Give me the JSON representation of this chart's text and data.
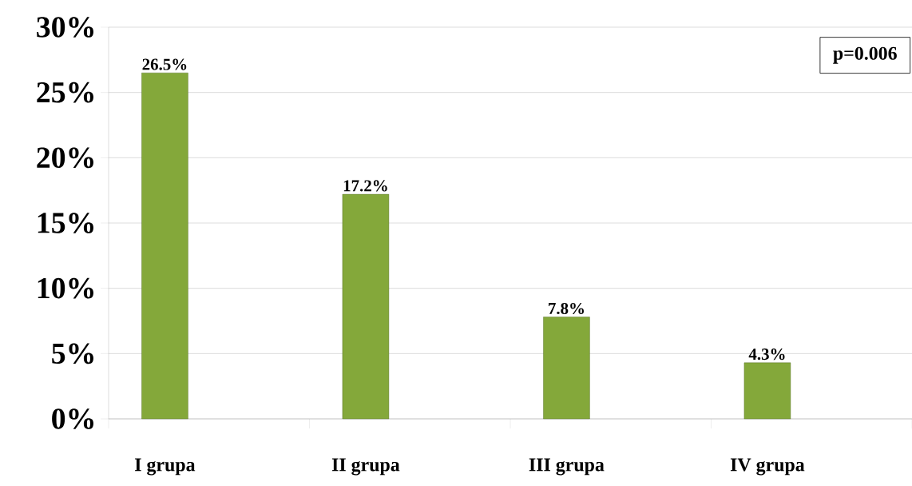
{
  "chart_data": {
    "type": "bar",
    "categories": [
      "I grupa",
      "II grupa",
      "III grupa",
      "IV grupa"
    ],
    "values": [
      26.5,
      17.2,
      7.8,
      4.3
    ],
    "value_labels": [
      "26.5%",
      "17.2%",
      "7.8%",
      "4.3%"
    ],
    "color": "#84a83a",
    "ylim": [
      0,
      30
    ],
    "yticks": [
      {
        "value": 0,
        "label": "0%"
      },
      {
        "value": 5,
        "label": "5%"
      },
      {
        "value": 10,
        "label": "10%"
      },
      {
        "value": 15,
        "label": "15%"
      },
      {
        "value": 20,
        "label": "20%"
      },
      {
        "value": 25,
        "label": "25%"
      },
      {
        "value": 30,
        "label": "30%"
      }
    ],
    "grid": "y",
    "annotations": [
      "p=0.006"
    ]
  }
}
